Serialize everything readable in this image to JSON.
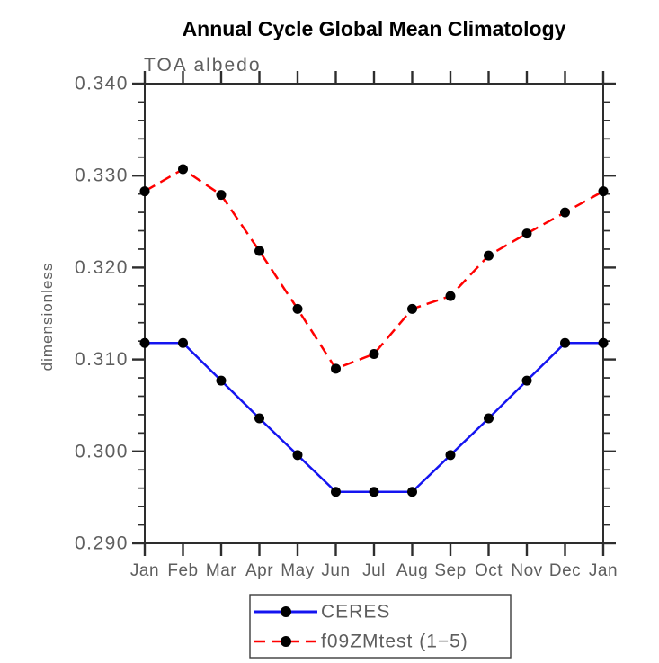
{
  "colors": {
    "background": "#ffffff",
    "axis": "#2d2d2d",
    "label_gray": "#5e5e5e",
    "title_black": "#000000",
    "ceres_blue": "#1414f0",
    "test_red": "#ff0000",
    "marker_black": "#000000",
    "legend_border": "#3c3c3c"
  },
  "chart_data": {
    "type": "line",
    "title": "Annual Cycle Global Mean Climatology",
    "subtitle": "TOA albedo",
    "ylabel": "dimensionless",
    "xlabel": "",
    "categories": [
      "Jan",
      "Feb",
      "Mar",
      "Apr",
      "May",
      "Jun",
      "Jul",
      "Aug",
      "Sep",
      "Oct",
      "Nov",
      "Dec",
      "Jan"
    ],
    "ylim": [
      0.29,
      0.34
    ],
    "yticks": [
      0.29,
      0.3,
      0.31,
      0.32,
      0.33,
      0.34
    ],
    "ytick_labels": [
      "0.290",
      "0.300",
      "0.310",
      "0.320",
      "0.330",
      "0.340"
    ],
    "y_minor_step": 0.002,
    "grid": false,
    "legend_position": "bottom-center",
    "series": [
      {
        "name": "CERES",
        "color": "#1414f0",
        "style": "solid",
        "marker": "circle",
        "marker_color": "#000000",
        "values": [
          0.3118,
          0.3118,
          0.3077,
          0.3036,
          0.2996,
          0.2956,
          0.2956,
          0.2956,
          0.2996,
          0.3036,
          0.3077,
          0.3118,
          0.3118
        ]
      },
      {
        "name": "f09ZMtest (1−5)",
        "color": "#ff0000",
        "style": "dashed",
        "marker": "circle",
        "marker_color": "#000000",
        "values": [
          0.3283,
          0.3307,
          0.3279,
          0.3218,
          0.3155,
          0.309,
          0.3106,
          0.3155,
          0.3169,
          0.3213,
          0.3237,
          0.326,
          0.3283
        ]
      }
    ]
  }
}
